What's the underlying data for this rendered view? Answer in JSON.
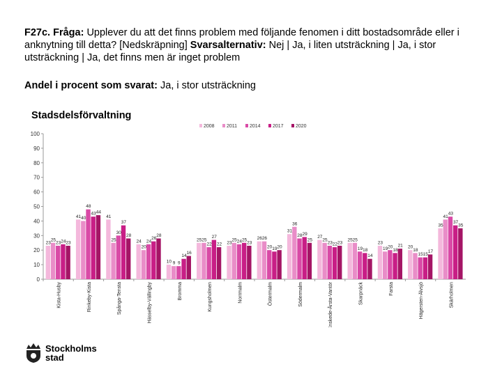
{
  "heading": {
    "question_label": "F27c. Fråga:",
    "question_text": "Upplever du att det finns problem med följande fenomen i ditt bostadsområde eller i anknytning till detta? [Nedskräpning]",
    "alternatives_label": "Svarsalternativ:",
    "alternatives_text": "Nej | Ja, i liten utsträckning | Ja, i stor utsträckning | Ja, det finns men är inget problem"
  },
  "subheading": {
    "label": "Andel i procent som svarat:",
    "value": "Ja, i stor utsträckning"
  },
  "logo": {
    "line1": "Stockholms",
    "line2": "stad"
  },
  "colors": [
    "#f4b8dc",
    "#e98dc8",
    "#d94aa6",
    "#c81e86",
    "#a51566"
  ],
  "chart_data": {
    "type": "bar",
    "title": "Stadsdelsförvaltning",
    "xlabel": "",
    "ylabel": "",
    "ylim": [
      0,
      100
    ],
    "yticks": [
      0,
      10,
      20,
      30,
      40,
      50,
      60,
      70,
      80,
      90,
      100
    ],
    "grid": false,
    "legend_position": "top",
    "categories": [
      "Kista-Husby",
      "Rinkeby-Kista",
      "Spånga-Tensta",
      "Hässelby-Vällingby",
      "Bromma",
      "Kungsholmen",
      "Norrmalm",
      "Östermalm",
      "Södermalm",
      "Enskede-Årsta-Vantör",
      "Skarpnäck",
      "Farsta",
      "Hägersten-Älvsjö",
      "Skärholmen"
    ],
    "series": [
      {
        "name": "2008",
        "values": [
          23,
          41,
          41,
          24,
          10,
          25,
          23,
          26,
          31,
          27,
          25,
          23,
          20,
          35
        ]
      },
      {
        "name": "2011",
        "values": [
          25,
          40,
          25,
          20,
          9,
          25,
          25,
          26,
          36,
          25,
          25,
          19,
          18,
          41
        ]
      },
      {
        "name": "2014",
        "values": [
          23,
          48,
          30,
          24,
          9,
          22,
          24,
          20,
          28,
          23,
          19,
          20,
          15,
          43
        ]
      },
      {
        "name": "2017",
        "values": [
          24,
          43,
          37,
          26,
          14,
          27,
          25,
          19,
          29,
          22,
          18,
          18,
          15,
          37
        ]
      },
      {
        "name": "2020",
        "values": [
          23,
          44,
          28,
          28,
          16,
          22,
          23,
          20,
          25,
          23,
          14,
          21,
          17,
          35
        ]
      }
    ]
  }
}
